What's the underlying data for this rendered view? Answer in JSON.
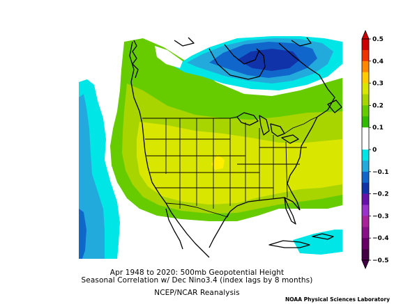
{
  "caption": {
    "line1": "Apr 1948 to 2020: 500mb Geopotential Height",
    "line2": "Seasonal Correlation w/ Dec Nino3.4 (index lags by 8 months)",
    "line3": "NCEP/NCAR Reanalysis"
  },
  "credit": "NOAA Physical Sciences Laboratory",
  "colorbar": {
    "labels": [
      "0.5",
      "0.4",
      "0.3",
      "0.2",
      "0.1",
      "0",
      "−0.1",
      "−0.2",
      "−0.3",
      "−0.4",
      "−0.5"
    ],
    "colors": [
      "#cc0000",
      "#ee3300",
      "#ff8800",
      "#ffcc00",
      "#d9e600",
      "#a8d400",
      "#66cc00",
      "#33bb00",
      "#ffffff",
      "#ffffff",
      "#00e5e5",
      "#22aadd",
      "#1166cc",
      "#1133aa",
      "#6611aa",
      "#9933cc",
      "#aa2299",
      "#881188",
      "#660066",
      "#440044"
    ],
    "top_arrow_color": "#cc0000",
    "bottom_arrow_color": "#440044"
  },
  "chart_data": {
    "type": "heatmap",
    "variable": "500mb Geopotential Height correlation",
    "range": [
      -0.5,
      0.5
    ],
    "features": [
      {
        "region": "central US (Kansas/Nebraska)",
        "value": 0.25
      },
      {
        "region": "contiguous United States",
        "value": 0.2
      },
      {
        "region": "western Canada / Pacific coast",
        "value": 0.15
      },
      {
        "region": "southern Canada band",
        "value": 0.1
      },
      {
        "region": "northern Quebec / Hudson Bay",
        "value": -0.25
      },
      {
        "region": "northeast Pacific",
        "value": -0.15
      },
      {
        "region": "far northeast Pacific edge",
        "value": -0.1
      },
      {
        "region": "southwest Atlantic",
        "value": -0.1
      }
    ]
  }
}
